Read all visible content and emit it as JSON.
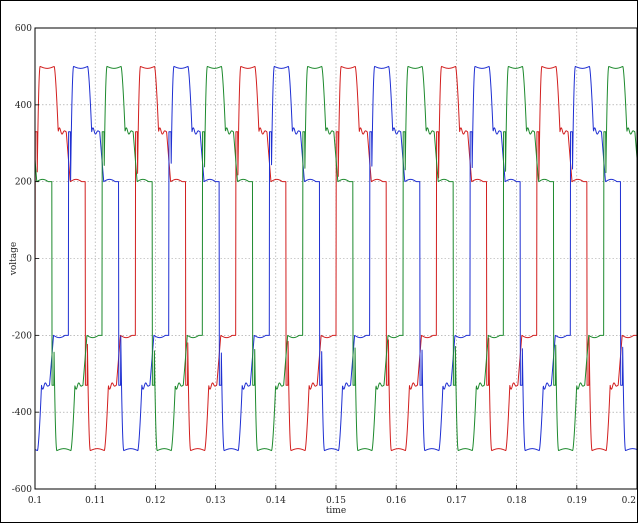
{
  "chart_data": {
    "type": "line",
    "title": "",
    "xlabel": "time",
    "ylabel": "voltage",
    "xlim": [
      0.1,
      0.2
    ],
    "ylim": [
      -600,
      600
    ],
    "grid": true,
    "y_ticks": [
      "600",
      "400",
      "200",
      "0",
      "-200",
      "-400",
      "-600"
    ],
    "x_ticks": [
      "0.1",
      "0.11",
      "0.12",
      "0.13",
      "0.14",
      "0.15",
      "0.16",
      "0.17",
      "0.18",
      "0.19",
      "0.2"
    ],
    "x_tick_values": [
      0.1,
      0.11,
      0.12,
      0.13,
      0.14,
      0.15,
      0.16,
      0.17,
      0.18,
      0.19,
      0.2
    ],
    "y_tick_values": [
      600,
      400,
      200,
      0,
      -200,
      -400,
      -600
    ],
    "waveform": {
      "period": 0.01667,
      "high_level": 200,
      "low_level": -200,
      "peak": 500,
      "trough": -500,
      "shoulder": 330,
      "shoulder_low": -330
    },
    "series": [
      {
        "color": "#d21f1f",
        "phase": 0.0
      },
      {
        "color": "#1f2fd2",
        "phase": 0.00556
      },
      {
        "color": "#1e8a2e",
        "phase": 0.01111
      }
    ]
  }
}
